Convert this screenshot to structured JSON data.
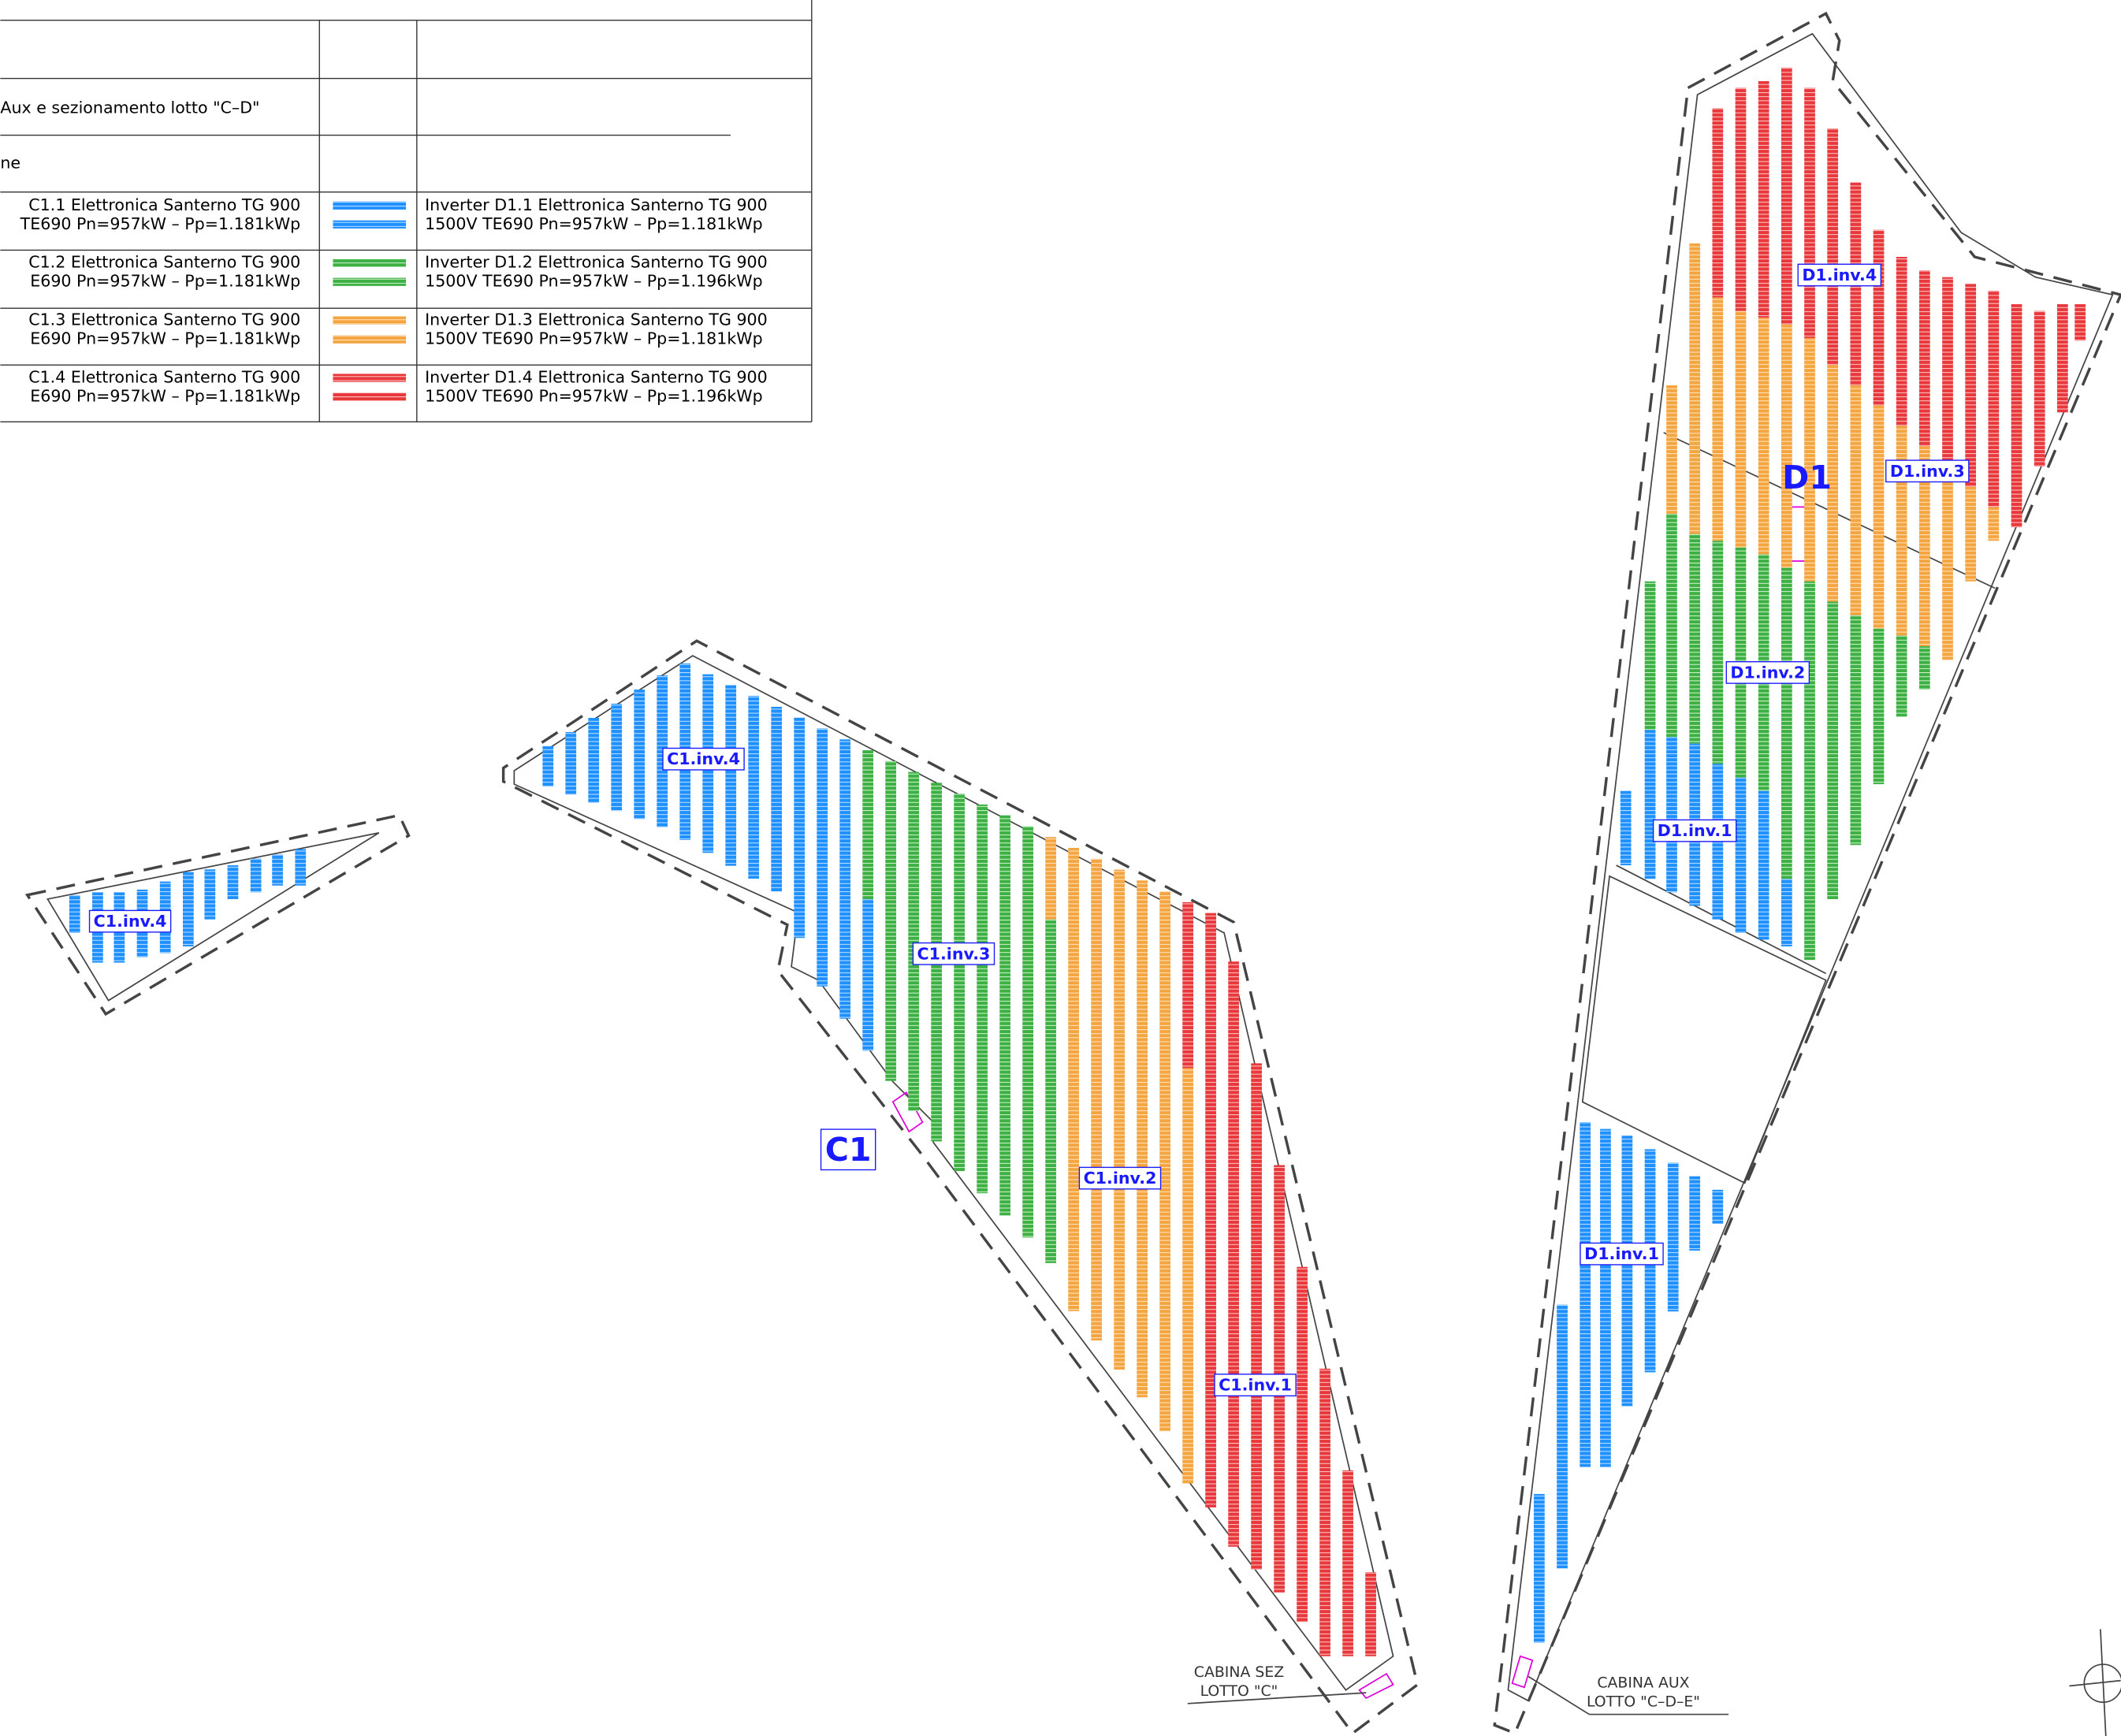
{
  "legend": {
    "header": [
      "Aux e sezionamento lotto \"C–D\"",
      "ne"
    ],
    "rows": [
      {
        "left": [
          "C1.1 Elettronica Santerno TG 900",
          "TE690 Pn=957kW – Pp=1.181kWp"
        ],
        "right": [
          "Inverter  D1.1 Elettronica Santerno TG 900",
          "1500V TE690 Pn=957kW – Pp=1.181kWp"
        ]
      },
      {
        "left": [
          "C1.2 Elettronica Santerno TG 900",
          "E690 Pn=957kW – Pp=1.181kWp"
        ],
        "right": [
          "Inverter  D1.2 Elettronica Santerno TG 900",
          "1500V TE690 Pn=957kW – Pp=1.196kWp"
        ]
      },
      {
        "left": [
          "C1.3 Elettronica Santerno TG 900",
          "E690 Pn=957kW – Pp=1.181kWp"
        ],
        "right": [
          "Inverter  D1.3 Elettronica Santerno TG 900",
          "1500V TE690 Pn=957kW – Pp=1.181kWp"
        ]
      },
      {
        "left": [
          "C1.4 Elettronica Santerno TG 900",
          "E690 Pn=957kW – Pp=1.181kWp"
        ],
        "right": [
          "Inverter  D1.4 Elettronica Santerno TG 900",
          "1500V TE690 Pn=957kW – Pp=1.196kWp"
        ]
      }
    ]
  },
  "field_labels": [
    "C1.inv.4",
    "C1.inv.3",
    "C1.inv.2",
    "C1.inv.1",
    "C1.inv.4",
    "D1.inv.4",
    "D1.inv.3",
    "D1.inv.2",
    "D1.inv.1",
    "D1.inv.1"
  ],
  "lots": [
    "C1",
    "D1"
  ],
  "cabins": [
    [
      "CABINA SEZ",
      "LOTTO \"C\""
    ],
    [
      "CABINA AUX",
      "LOTTO \"C–D–E\""
    ]
  ]
}
